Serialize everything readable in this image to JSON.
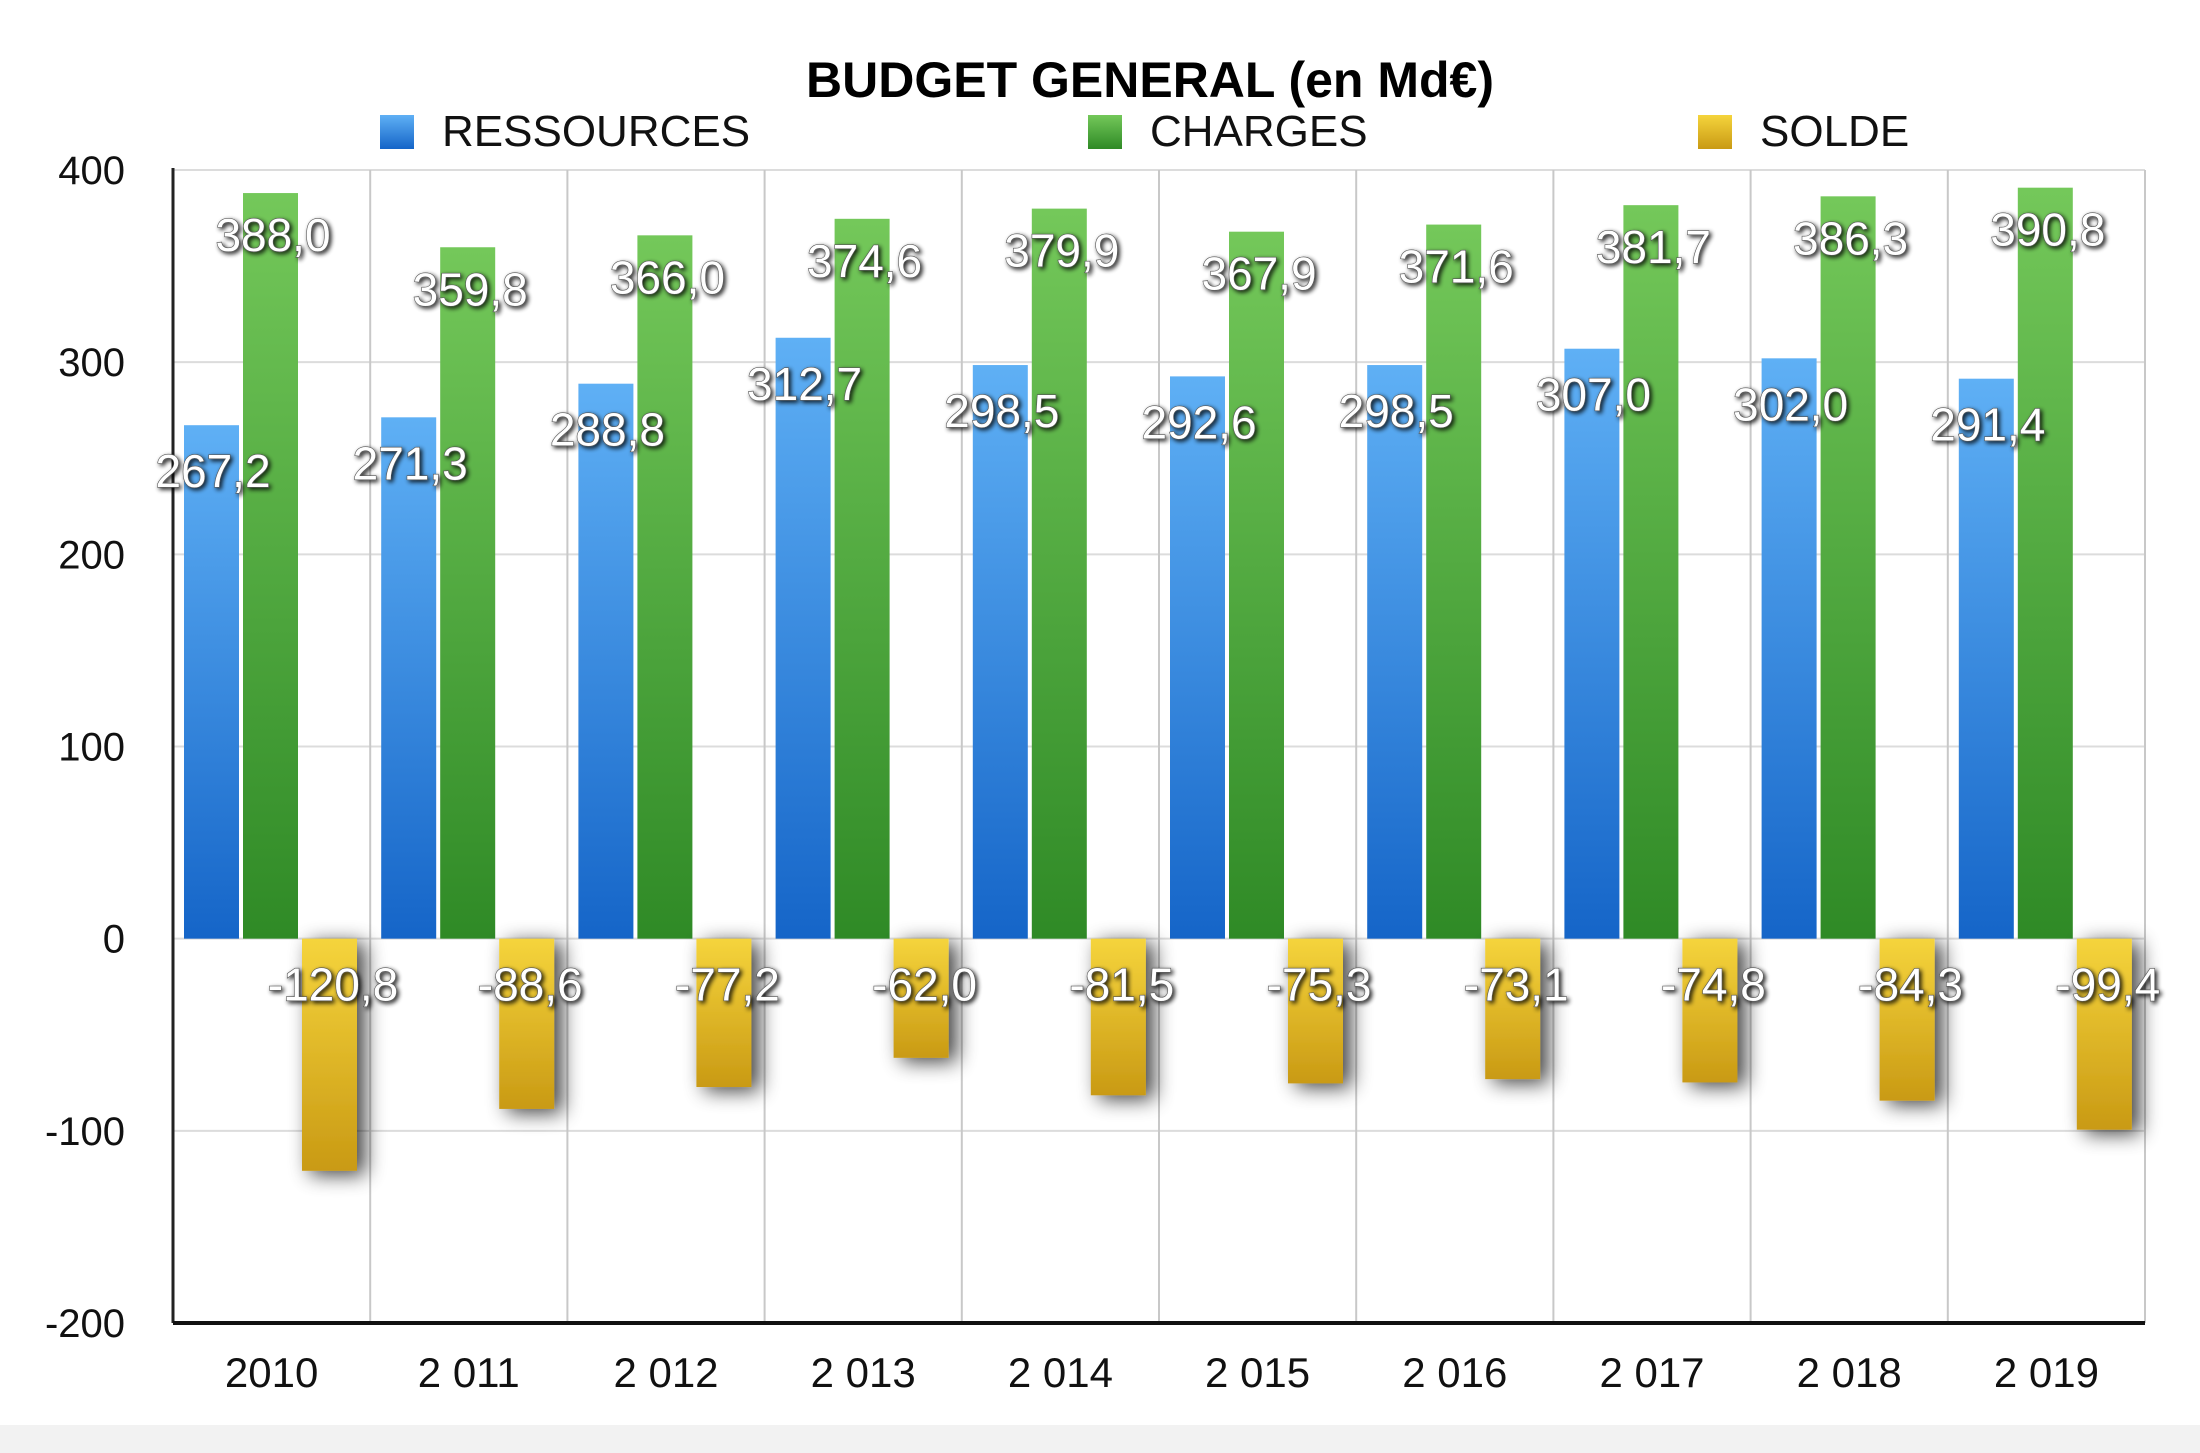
{
  "chart_data": {
    "type": "bar",
    "title": "BUDGET GENERAL (en Md€)",
    "xlabel": "",
    "ylabel": "",
    "ylim": [
      -200,
      400
    ],
    "yticks": [
      "400",
      "300",
      "200",
      "100",
      "0",
      "-100",
      "-200"
    ],
    "ytick_values": [
      400,
      300,
      200,
      100,
      0,
      -100,
      -200
    ],
    "grid": true,
    "legend_position": "top",
    "categories": [
      "2010",
      "2 011",
      "2 012",
      "2 013",
      "2 014",
      "2 015",
      "2 016",
      "2 017",
      "2 018",
      "2 019"
    ],
    "series": [
      {
        "name": "RESSOURCES",
        "color": "#2f8fe6",
        "values": [
          267.2,
          271.3,
          288.8,
          312.7,
          298.5,
          292.6,
          298.5,
          307.0,
          302.0,
          291.4
        ],
        "labels": [
          "267,2",
          "271,3",
          "288,8",
          "312,7",
          "298,5",
          "292,6",
          "298,5",
          "307,0",
          "302,0",
          "291,4"
        ]
      },
      {
        "name": "CHARGES",
        "color": "#4caa3a",
        "values": [
          388.0,
          359.8,
          366.0,
          374.6,
          379.9,
          367.9,
          371.6,
          381.7,
          386.3,
          390.8
        ],
        "labels": [
          "388,0",
          "359,8",
          "366,0",
          "374,6",
          "379,9",
          "367,9",
          "371,6",
          "381,7",
          "386,3",
          "390,8"
        ]
      },
      {
        "name": "SOLDE",
        "color": "#e6c02a",
        "values": [
          -120.8,
          -88.6,
          -77.2,
          -62.0,
          -81.5,
          -75.3,
          -73.1,
          -74.8,
          -84.3,
          -99.4
        ],
        "labels": [
          "-120,8",
          "-88,6",
          "-77,2",
          "-62,0",
          "-81,5",
          "-75,3",
          "-73,1",
          "-74,8",
          "-84,3",
          "-99,4"
        ]
      }
    ]
  }
}
